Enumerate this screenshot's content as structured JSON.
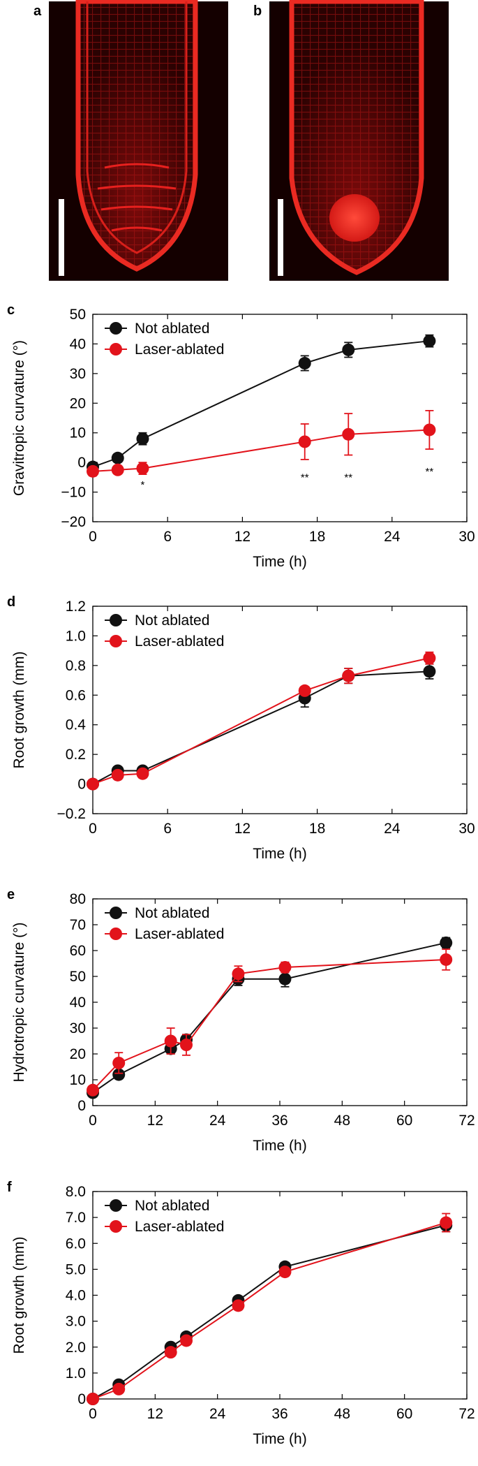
{
  "micrographs": [
    {
      "letter": "a",
      "description": "root tip, not ablated"
    },
    {
      "letter": "b",
      "description": "root tip, columella laser-ablated"
    }
  ],
  "colors": {
    "not_ablated": "#111111",
    "laser_ablated": "#e2131b",
    "micro_bg": "#140000",
    "micro_cell": "#e8201e",
    "scale_bar": "#ffffff"
  },
  "chart_data": [
    {
      "letter": "c",
      "type": "line",
      "title": "",
      "xlabel": "Time (h)",
      "ylabel": "Gravitropic curvature (°)",
      "xlim": [
        0,
        30
      ],
      "ylim": [
        -20,
        50
      ],
      "xticks": [
        0,
        6,
        12,
        18,
        24,
        30
      ],
      "yticks": [
        -20,
        -10,
        0,
        10,
        20,
        30,
        40,
        50
      ],
      "xtick_labels": [
        "0",
        "6",
        "12",
        "18",
        "24",
        "30"
      ],
      "ytick_labels": [
        "−20",
        "−10",
        "0",
        "10",
        "20",
        "30",
        "40",
        "50"
      ],
      "legend": [
        "Not ablated",
        "Laser-ablated"
      ],
      "legend_position": "top-left",
      "series": [
        {
          "name": "Not ablated",
          "x": [
            0,
            2,
            4,
            17,
            20.5,
            27
          ],
          "y": [
            -1.5,
            1.5,
            8,
            33.5,
            38,
            41
          ],
          "err": [
            1.5,
            1,
            2,
            2.5,
            2.5,
            2
          ]
        },
        {
          "name": "Laser-ablated",
          "x": [
            0,
            2,
            4,
            17,
            20.5,
            27
          ],
          "y": [
            -3,
            -2.5,
            -2,
            7,
            9.5,
            11
          ],
          "err": [
            1.5,
            1,
            2,
            6,
            7,
            6.5
          ]
        }
      ],
      "annotations": [
        {
          "x": 4,
          "y": -7.5,
          "text": "*"
        },
        {
          "x": 17,
          "y": -5,
          "text": "**"
        },
        {
          "x": 20.5,
          "y": -5,
          "text": "**"
        },
        {
          "x": 27,
          "y": -3,
          "text": "**"
        }
      ]
    },
    {
      "letter": "d",
      "type": "line",
      "title": "",
      "xlabel": "Time (h)",
      "ylabel": "Root growth (mm)",
      "xlim": [
        0,
        30
      ],
      "ylim": [
        -0.2,
        1.2
      ],
      "xticks": [
        0,
        6,
        12,
        18,
        24,
        30
      ],
      "yticks": [
        -0.2,
        0,
        0.2,
        0.4,
        0.6,
        0.8,
        1.0,
        1.2
      ],
      "xtick_labels": [
        "0",
        "6",
        "12",
        "18",
        "24",
        "30"
      ],
      "ytick_labels": [
        "−0.2",
        "0",
        "0.2",
        "0.4",
        "0.6",
        "0.8",
        "1.0",
        "1.2"
      ],
      "legend": [
        "Not ablated",
        "Laser-ablated"
      ],
      "legend_position": "top-left",
      "series": [
        {
          "name": "Not ablated",
          "x": [
            0,
            2,
            4,
            17,
            20.5,
            27
          ],
          "y": [
            0,
            0.09,
            0.09,
            0.58,
            0.73,
            0.76
          ],
          "err": [
            0,
            0.01,
            0.01,
            0.06,
            0.05,
            0.05
          ]
        },
        {
          "name": "Laser-ablated",
          "x": [
            0,
            2,
            4,
            17,
            20.5,
            27
          ],
          "y": [
            0,
            0.06,
            0.07,
            0.63,
            0.73,
            0.85
          ],
          "err": [
            0,
            0.01,
            0.01,
            0.02,
            0.05,
            0.04
          ]
        }
      ],
      "annotations": []
    },
    {
      "letter": "e",
      "type": "line",
      "title": "",
      "xlabel": "Time (h)",
      "ylabel": "Hydrotropic curvature (°)",
      "xlim": [
        0,
        72
      ],
      "ylim": [
        0,
        80
      ],
      "xticks": [
        0,
        12,
        24,
        36,
        48,
        60,
        72
      ],
      "yticks": [
        0,
        10,
        20,
        30,
        40,
        50,
        60,
        70,
        80
      ],
      "xtick_labels": [
        "0",
        "12",
        "24",
        "36",
        "48",
        "60",
        "72"
      ],
      "ytick_labels": [
        "0",
        "10",
        "20",
        "30",
        "40",
        "50",
        "60",
        "70",
        "80"
      ],
      "legend": [
        "Not ablated",
        "Laser-ablated"
      ],
      "legend_position": "top-left",
      "series": [
        {
          "name": "Not ablated",
          "x": [
            0,
            5,
            15,
            18,
            28,
            37,
            68
          ],
          "y": [
            5,
            12,
            22,
            25.5,
            49,
            49,
            63
          ],
          "err": [
            1,
            1.5,
            2,
            2,
            2.5,
            3,
            2
          ]
        },
        {
          "name": "Laser-ablated",
          "x": [
            0,
            5,
            15,
            18,
            28,
            37,
            68
          ],
          "y": [
            6,
            16.5,
            25,
            23.5,
            51,
            53.5,
            56.5
          ],
          "err": [
            1,
            4,
            5,
            4,
            3,
            2,
            4
          ]
        }
      ],
      "annotations": []
    },
    {
      "letter": "f",
      "type": "line",
      "title": "",
      "xlabel": "Time (h)",
      "ylabel": "Root growth (mm)",
      "xlim": [
        0,
        72
      ],
      "ylim": [
        0,
        8
      ],
      "xticks": [
        0,
        12,
        24,
        36,
        48,
        60,
        72
      ],
      "yticks": [
        0,
        1,
        2,
        3,
        4,
        5,
        6,
        7,
        8
      ],
      "xtick_labels": [
        "0",
        "12",
        "24",
        "36",
        "48",
        "60",
        "72"
      ],
      "ytick_labels": [
        "0",
        "1.0",
        "2.0",
        "3.0",
        "4.0",
        "5.0",
        "6.0",
        "7.0",
        "8.0"
      ],
      "legend": [
        "Not ablated",
        "Laser-ablated"
      ],
      "legend_position": "top-left",
      "series": [
        {
          "name": "Not ablated",
          "x": [
            0,
            5,
            15,
            18,
            28,
            37,
            68
          ],
          "y": [
            0,
            0.55,
            2.0,
            2.4,
            3.8,
            5.1,
            6.7
          ],
          "err": [
            0,
            0.05,
            0.1,
            0.1,
            0.12,
            0.15,
            0.25
          ]
        },
        {
          "name": "Laser-ablated",
          "x": [
            0,
            5,
            15,
            18,
            28,
            37,
            68
          ],
          "y": [
            0,
            0.38,
            1.8,
            2.25,
            3.6,
            4.9,
            6.8
          ],
          "err": [
            0,
            0.05,
            0.1,
            0.1,
            0.12,
            0.15,
            0.35
          ]
        }
      ],
      "annotations": []
    }
  ]
}
